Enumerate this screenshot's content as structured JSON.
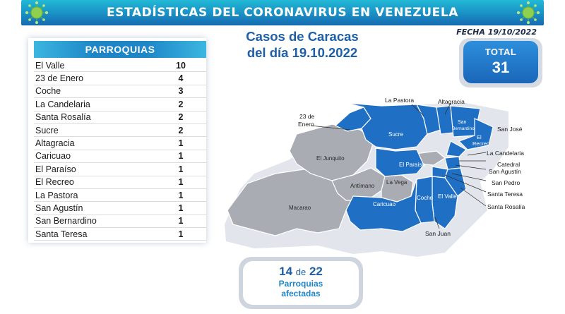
{
  "header": {
    "title": "ESTADÍSTICAS DEL CORONAVIRUS EN VENEZUELA",
    "fecha": "FECHA 19/10/2022",
    "accent_color": "#1a8fc4"
  },
  "table": {
    "heading": "PARROQUIAS",
    "rows": [
      {
        "name": "El Valle",
        "value": "10"
      },
      {
        "name": "23 de Enero",
        "value": "4"
      },
      {
        "name": "Coche",
        "value": "3"
      },
      {
        "name": "La Candelaria",
        "value": "2"
      },
      {
        "name": "Santa Rosalía",
        "value": "2"
      },
      {
        "name": "Sucre",
        "value": "2"
      },
      {
        "name": "Altagracia",
        "value": "1"
      },
      {
        "name": "Caricuao",
        "value": "1"
      },
      {
        "name": "El Paraíso",
        "value": "1"
      },
      {
        "name": "El Recreo",
        "value": "1"
      },
      {
        "name": "La Pastora",
        "value": "1"
      },
      {
        "name": "San Agustín",
        "value": "1"
      },
      {
        "name": "San Bernardino",
        "value": "1"
      },
      {
        "name": "Santa Teresa",
        "value": "1"
      }
    ]
  },
  "casos": {
    "line1": "Casos de Caracas",
    "line2": "del día 19.10.2022"
  },
  "total": {
    "label": "TOTAL",
    "value": "31"
  },
  "map": {
    "affected_color": "#1f6fc4",
    "unaffected_color": "#a9adb3",
    "outer_labels": {
      "la_pastora": "La Pastora",
      "altagracia": "Altagracia",
      "enero_1": "23 de",
      "enero_2": "Enero",
      "san_jose": "San José",
      "la_candelaria": "La Candelaria",
      "catedral": "Catedral",
      "san_agustin": "San Agustín",
      "san_pedro": "San Pedro",
      "santa_teresa": "Santa Teresa",
      "santa_rosalia": "Santa Rosalía",
      "san_juan": "San Juan"
    },
    "inner_labels": {
      "sucre": "Sucre",
      "el_junquito": "El Junquito",
      "el_paraiso": "El Paraíso",
      "antimano": "Antímano",
      "la_vega": "La Vega",
      "macarao": "Macarao",
      "caricuao": "Caricuao",
      "coche": "Coche",
      "el_valle": "El Valle",
      "san_bernardino_1": "San",
      "san_bernardino_2": "Bernardino",
      "el_recreo_1": "El",
      "el_recreo_2": "Recreo"
    }
  },
  "summary": {
    "count": "14",
    "de": "de",
    "total": "22",
    "line1": "Parroquias",
    "line2": "afectadas"
  }
}
